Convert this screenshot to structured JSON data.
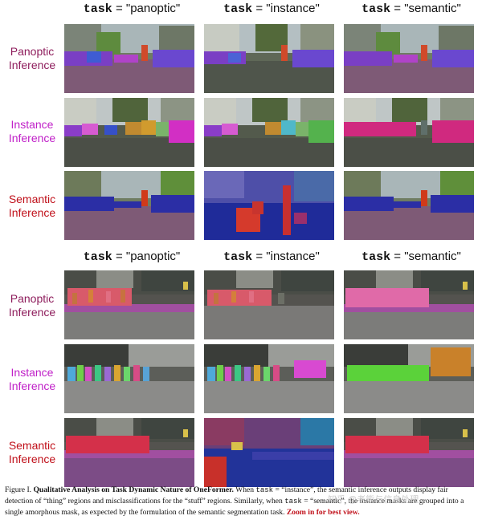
{
  "column_headers": [
    {
      "keyword": "task",
      "value": "= \"panoptic\""
    },
    {
      "keyword": "task",
      "value": "= \"instance\""
    },
    {
      "keyword": "task",
      "value": "= \"semantic\""
    }
  ],
  "row_labels": {
    "panoptic": [
      "Panoptic",
      "Inference"
    ],
    "instance": [
      "Instance",
      "Inference"
    ],
    "semantic": [
      "Semantic",
      "Inference"
    ]
  },
  "label_colors": {
    "panoptic": "#8e1d5c",
    "instance": "#c020c8",
    "semantic": "#c0101a"
  },
  "caption": {
    "figure_label": "Figure I.",
    "title": "Qualitative Analysis on Task Dynamic Nature of OneFormer.",
    "sentence_1_a": "When",
    "sentence_1_code": "task",
    "sentence_1_b": "= “instance”, the semantic inference outputs display fair detection of “thing” regions and misclassifications for the “stuff” regions. Similarly, when",
    "sentence_2_code": "task",
    "sentence_2_b": "= “semantic”, the instance masks are grouped into a single amorphous mask, as expected by the formulation of the semantic segmentation task.",
    "zoom_note": "Zoom in for best view."
  },
  "watermark": "知乎 @老熊与信息处理"
}
